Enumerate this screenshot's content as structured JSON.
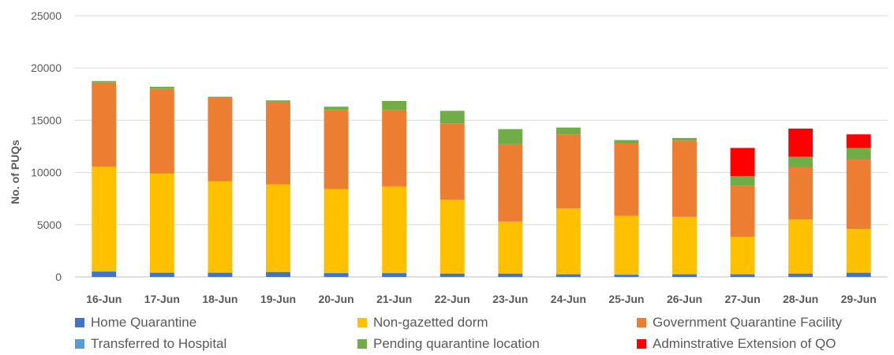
{
  "chart_data": {
    "type": "bar",
    "stacked": true,
    "title": "",
    "xlabel": "",
    "ylabel": "No. of PUQs",
    "ylim": [
      0,
      25000
    ],
    "yticks": [
      0,
      5000,
      10000,
      15000,
      20000,
      25000
    ],
    "grid": true,
    "legend_position": "bottom",
    "categories": [
      "16-Jun",
      "17-Jun",
      "18-Jun",
      "19-Jun",
      "20-Jun",
      "21-Jun",
      "22-Jun",
      "23-Jun",
      "24-Jun",
      "25-Jun",
      "26-Jun",
      "27-Jun",
      "28-Jun",
      "29-Jun"
    ],
    "series": [
      {
        "name": "Home Quarantine",
        "color": "#4472C4",
        "values": [
          500,
          400,
          400,
          450,
          350,
          350,
          300,
          300,
          250,
          200,
          250,
          250,
          300,
          400
        ]
      },
      {
        "name": "Transferred to Hospital",
        "color": "#5B9BD5",
        "values": [
          30,
          30,
          30,
          30,
          30,
          30,
          30,
          30,
          30,
          30,
          30,
          30,
          30,
          30
        ]
      },
      {
        "name": "Non-gazetted dorm",
        "color": "#FFC000",
        "values": [
          10020,
          9470,
          8720,
          8370,
          8020,
          8270,
          7070,
          4970,
          6270,
          5620,
          5470,
          3570,
          5170,
          4170
        ]
      },
      {
        "name": "Government Quarantine Facility",
        "color": "#ED7D31",
        "values": [
          8050,
          8100,
          8000,
          7850,
          7600,
          7300,
          7300,
          7400,
          7100,
          6950,
          7300,
          4900,
          5000,
          6650
        ]
      },
      {
        "name": "Pending quarantine location",
        "color": "#70AD47",
        "values": [
          150,
          200,
          100,
          200,
          300,
          900,
          1200,
          1450,
          650,
          300,
          250,
          900,
          1000,
          1100
        ]
      },
      {
        "name": "Adminstrative Extension of QO",
        "color": "#FF0000",
        "values": [
          0,
          0,
          0,
          0,
          0,
          0,
          0,
          0,
          0,
          0,
          0,
          2700,
          2700,
          1300
        ]
      }
    ]
  },
  "legend": [
    {
      "label": "Home Quarantine",
      "color": "#4472C4"
    },
    {
      "label": "Non-gazetted dorm",
      "color": "#FFC000"
    },
    {
      "label": "Government Quarantine Facility",
      "color": "#ED7D31"
    },
    {
      "label": "Transferred to Hospital",
      "color": "#5B9BD5"
    },
    {
      "label": "Pending quarantine location",
      "color": "#70AD47"
    },
    {
      "label": "Adminstrative Extension of QO",
      "color": "#FF0000"
    }
  ]
}
